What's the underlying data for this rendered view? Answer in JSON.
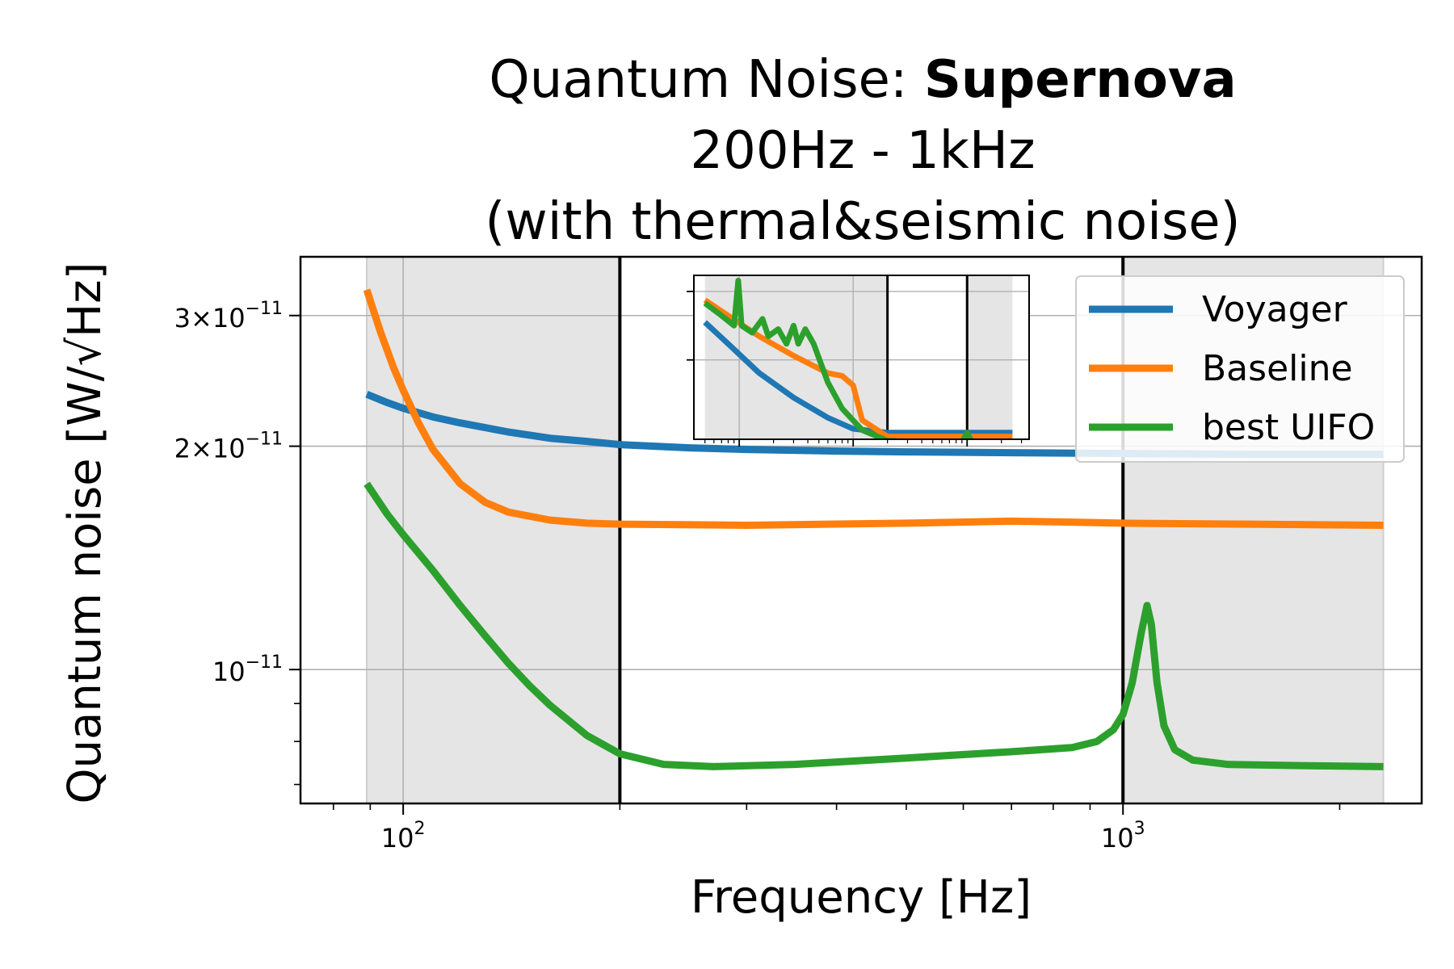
{
  "chart_data": {
    "type": "line",
    "title": {
      "line1_prefix": "Quantum Noise: ",
      "line1_bold": "Supernova",
      "line2": "200Hz - 1kHz",
      "line3": "(with thermal&seismic noise)"
    },
    "xlabel": "Frequency [Hz]",
    "ylabel": "Quantum noise [W/√Hz]",
    "xscale": "log",
    "yscale": "log",
    "xlim": [
      72,
      2600
    ],
    "ylim": [
      6.6e-12,
      3.6e-11
    ],
    "grid": true,
    "legend": "top-right",
    "x_ticks": [
      {
        "value": 100,
        "base": "10",
        "exp": "2"
      },
      {
        "value": 1000,
        "base": "10",
        "exp": "3"
      }
    ],
    "y_ticks": [
      {
        "value": 3e-11,
        "mant": "3",
        "base": "10",
        "exp": "−11"
      },
      {
        "value": 2e-11,
        "mant": "2",
        "base": "10",
        "exp": "−11"
      },
      {
        "value": 1e-11,
        "mant": "",
        "base": "10",
        "exp": "−11"
      }
    ],
    "shaded_regions": [
      [
        89,
        200
      ],
      [
        1000,
        2300
      ]
    ],
    "vertical_lines": [
      200,
      1000
    ],
    "series": [
      {
        "name": "Voyager",
        "color": "#1f77b4",
        "points": [
          [
            89,
            2.35e-11
          ],
          [
            95,
            2.29e-11
          ],
          [
            100,
            2.25e-11
          ],
          [
            110,
            2.19e-11
          ],
          [
            120,
            2.15e-11
          ],
          [
            140,
            2.09e-11
          ],
          [
            160,
            2.05e-11
          ],
          [
            180,
            2.03e-11
          ],
          [
            200,
            2.01e-11
          ],
          [
            250,
            1.99e-11
          ],
          [
            300,
            1.98e-11
          ],
          [
            400,
            1.97e-11
          ],
          [
            500,
            1.965e-11
          ],
          [
            700,
            1.96e-11
          ],
          [
            1000,
            1.955e-11
          ],
          [
            1500,
            1.95e-11
          ],
          [
            2300,
            1.95e-11
          ]
        ]
      },
      {
        "name": "Baseline",
        "color": "#ff7f0e",
        "points": [
          [
            89,
            3.25e-11
          ],
          [
            93,
            2.85e-11
          ],
          [
            97,
            2.55e-11
          ],
          [
            100,
            2.38e-11
          ],
          [
            105,
            2.15e-11
          ],
          [
            110,
            1.98e-11
          ],
          [
            120,
            1.78e-11
          ],
          [
            130,
            1.68e-11
          ],
          [
            140,
            1.63e-11
          ],
          [
            160,
            1.59e-11
          ],
          [
            180,
            1.575e-11
          ],
          [
            200,
            1.57e-11
          ],
          [
            300,
            1.565e-11
          ],
          [
            500,
            1.575e-11
          ],
          [
            700,
            1.585e-11
          ],
          [
            850,
            1.58e-11
          ],
          [
            1000,
            1.575e-11
          ],
          [
            1500,
            1.57e-11
          ],
          [
            2300,
            1.565e-11
          ]
        ]
      },
      {
        "name": "best UIFO",
        "color": "#2ca02c",
        "points": [
          [
            89,
            1.78e-11
          ],
          [
            95,
            1.62e-11
          ],
          [
            100,
            1.52e-11
          ],
          [
            110,
            1.36e-11
          ],
          [
            120,
            1.22e-11
          ],
          [
            130,
            1.11e-11
          ],
          [
            140,
            1.02e-11
          ],
          [
            150,
            9.5e-12
          ],
          [
            160,
            8.95e-12
          ],
          [
            180,
            8.15e-12
          ],
          [
            200,
            7.7e-12
          ],
          [
            230,
            7.45e-12
          ],
          [
            270,
            7.4e-12
          ],
          [
            350,
            7.45e-12
          ],
          [
            500,
            7.6e-12
          ],
          [
            700,
            7.75e-12
          ],
          [
            850,
            7.85e-12
          ],
          [
            920,
            8e-12
          ],
          [
            970,
            8.3e-12
          ],
          [
            1000,
            8.7e-12
          ],
          [
            1030,
            9.6e-12
          ],
          [
            1060,
            1.12e-11
          ],
          [
            1080,
            1.22e-11
          ],
          [
            1095,
            1.15e-11
          ],
          [
            1115,
            9.6e-12
          ],
          [
            1140,
            8.4e-12
          ],
          [
            1180,
            7.8e-12
          ],
          [
            1250,
            7.55e-12
          ],
          [
            1400,
            7.45e-12
          ],
          [
            1800,
            7.42e-12
          ],
          [
            2300,
            7.4e-12
          ]
        ]
      }
    ],
    "inset": {
      "xscale": "log",
      "yscale": "log",
      "xlim": [
        4,
        3500
      ],
      "ylim": [
        1.25e-11,
        3.3e-11
      ],
      "grid": true,
      "shaded_regions": [
        [
          5,
          200
        ],
        [
          1000,
          2500
        ]
      ],
      "vertical_lines": [
        200,
        1000
      ],
      "series": [
        {
          "name": "Voyager",
          "color": "#1f77b4",
          "points": [
            [
              5,
              2.5e-11
            ],
            [
              8,
              2.2e-11
            ],
            [
              15,
              1.85e-11
            ],
            [
              30,
              1.6e-11
            ],
            [
              60,
              1.42e-11
            ],
            [
              100,
              1.33e-11
            ],
            [
              200,
              1.3e-11
            ],
            [
              1000,
              1.3e-11
            ],
            [
              2500,
              1.3e-11
            ]
          ]
        },
        {
          "name": "Baseline",
          "color": "#ff7f0e",
          "points": [
            [
              5,
              2.85e-11
            ],
            [
              8,
              2.6e-11
            ],
            [
              15,
              2.3e-11
            ],
            [
              30,
              2.05e-11
            ],
            [
              60,
              1.85e-11
            ],
            [
              80,
              1.82e-11
            ],
            [
              100,
              1.72e-11
            ],
            [
              120,
              1.4e-11
            ],
            [
              200,
              1.27e-11
            ],
            [
              1000,
              1.27e-11
            ],
            [
              2500,
              1.27e-11
            ]
          ]
        },
        {
          "name": "best UIFO",
          "color": "#2ca02c",
          "points": [
            [
              5,
              2.8e-11
            ],
            [
              7,
              2.6e-11
            ],
            [
              9,
              2.45e-11
            ],
            [
              9.8,
              3.2e-11
            ],
            [
              10.5,
              2.45e-11
            ],
            [
              13,
              2.35e-11
            ],
            [
              16,
              2.55e-11
            ],
            [
              18,
              2.3e-11
            ],
            [
              22,
              2.4e-11
            ],
            [
              26,
              2.2e-11
            ],
            [
              30,
              2.45e-11
            ],
            [
              33,
              2.2e-11
            ],
            [
              38,
              2.4e-11
            ],
            [
              45,
              2.2e-11
            ],
            [
              60,
              1.75e-11
            ],
            [
              80,
              1.5e-11
            ],
            [
              120,
              1.32e-11
            ],
            [
              200,
              1.24e-11
            ],
            [
              400,
              1.23e-11
            ],
            [
              900,
              1.23e-11
            ],
            [
              1000,
              1.3e-11
            ],
            [
              1100,
              1.23e-11
            ],
            [
              2500,
              1.23e-11
            ]
          ]
        }
      ]
    }
  }
}
